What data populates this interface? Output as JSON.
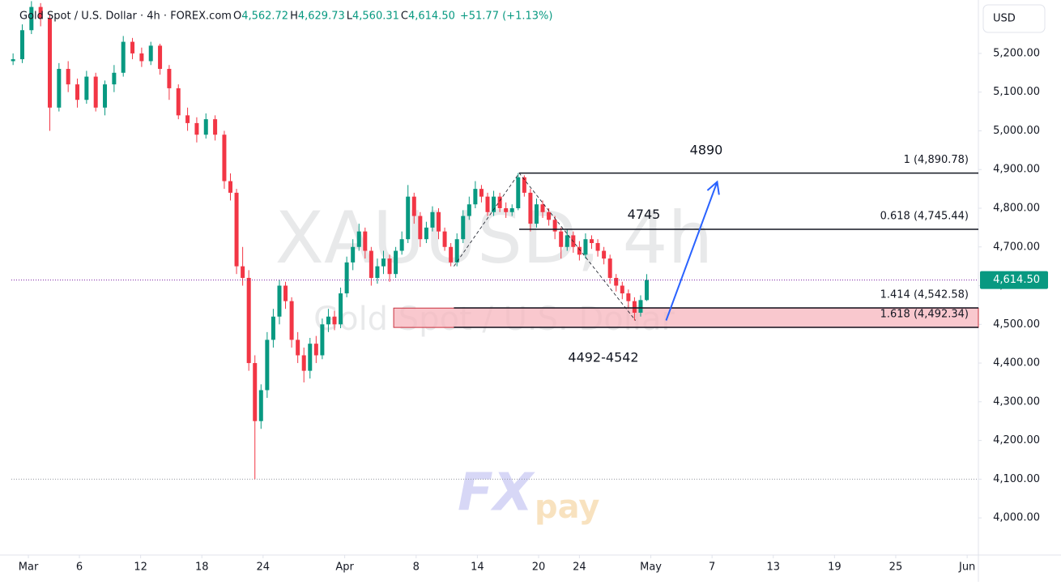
{
  "header": {
    "title": "Gold Spot / U.S. Dollar · 4h · FOREX.com",
    "ohlc": [
      {
        "key": "O",
        "text": "4,562.72"
      },
      {
        "key": "H",
        "text": "4,629.73"
      },
      {
        "key": "L",
        "text": "4,560.31"
      },
      {
        "key": "C",
        "text": "4,614.50"
      }
    ],
    "change": "+51.77 (+1.13%)"
  },
  "currency_button": "USD",
  "watermark": {
    "symbol": "XAUUSD, 4h",
    "description": "Gold Spot / U.S. Dollar"
  },
  "logo": {
    "left": "FX",
    "right": "pay"
  },
  "chart_data": {
    "type": "candlestick",
    "up_color": "#089981",
    "down_color": "#f23645",
    "xlim": [
      -1.67,
      93.1
    ],
    "ylim": [
      3904,
      5338
    ],
    "xticks": [
      {
        "value": 0,
        "label": "Mar"
      },
      {
        "value": 5,
        "label": "6"
      },
      {
        "value": 11,
        "label": "12"
      },
      {
        "value": 17,
        "label": "18"
      },
      {
        "value": 23,
        "label": "24"
      },
      {
        "value": 31,
        "label": "Apr"
      },
      {
        "value": 38,
        "label": "8"
      },
      {
        "value": 44,
        "label": "14"
      },
      {
        "value": 50,
        "label": "20"
      },
      {
        "value": 54,
        "label": "24"
      },
      {
        "value": 61,
        "label": "May"
      },
      {
        "value": 67,
        "label": "7"
      },
      {
        "value": 73,
        "label": "13"
      },
      {
        "value": 79,
        "label": "19"
      },
      {
        "value": 85,
        "label": "25"
      },
      {
        "value": 92,
        "label": "Jun"
      }
    ],
    "yticks": [
      {
        "value": 4000,
        "label": "4,000.00"
      },
      {
        "value": 4100,
        "label": "4,100.00"
      },
      {
        "value": 4200,
        "label": "4,200.00"
      },
      {
        "value": 4300,
        "label": "4,300.00"
      },
      {
        "value": 4400,
        "label": "4,400.00"
      },
      {
        "value": 4500,
        "label": "4,500.00"
      },
      {
        "value": 4600,
        "label": "4,600.00"
      },
      {
        "value": 4700,
        "label": "4,700.00"
      },
      {
        "value": 4800,
        "label": "4,800.00"
      },
      {
        "value": 4900,
        "label": "4,900.00"
      },
      {
        "value": 5000,
        "label": "5,000.00"
      },
      {
        "value": 5100,
        "label": "5,100.00"
      },
      {
        "value": 5200,
        "label": "5,200.00"
      }
    ],
    "x": [
      -1.5,
      -0.6,
      0.3,
      1.2,
      2.1,
      3.0,
      3.9,
      4.8,
      5.7,
      6.6,
      7.5,
      8.4,
      9.3,
      10.2,
      11.1,
      12.0,
      12.9,
      13.8,
      14.7,
      15.6,
      16.5,
      17.4,
      18.3,
      19.2,
      19.8,
      20.4,
      21.0,
      21.6,
      22.2,
      22.8,
      23.4,
      24.0,
      24.6,
      25.2,
      25.8,
      26.4,
      27.0,
      27.6,
      28.2,
      28.8,
      29.4,
      30.0,
      30.6,
      31.2,
      31.8,
      32.4,
      33.0,
      33.6,
      34.2,
      34.8,
      35.4,
      36.0,
      36.6,
      37.2,
      37.8,
      38.4,
      39.0,
      39.6,
      40.2,
      40.8,
      41.4,
      42.0,
      42.6,
      43.2,
      43.8,
      44.4,
      45.0,
      45.6,
      46.2,
      46.8,
      47.4,
      48.0,
      48.6,
      49.2,
      49.8,
      50.4,
      51.0,
      51.6,
      52.2,
      52.8,
      53.4,
      54.0,
      54.6,
      55.2,
      55.8,
      56.4,
      57.0,
      57.6,
      58.2,
      58.8,
      59.4,
      60.0,
      60.6
    ],
    "open": [
      5180,
      5185,
      5260,
      5320,
      5290,
      5060,
      5160,
      5120,
      5080,
      5140,
      5060,
      5120,
      5150,
      5230,
      5200,
      5180,
      5220,
      5160,
      5110,
      5040,
      5020,
      4990,
      5030,
      4990,
      4870,
      4840,
      4650,
      4620,
      4400,
      4250,
      4330,
      4460,
      4520,
      4600,
      4560,
      4460,
      4420,
      4380,
      4450,
      4420,
      4500,
      4520,
      4500,
      4580,
      4660,
      4700,
      4740,
      4690,
      4620,
      4650,
      4670,
      4630,
      4690,
      4720,
      4830,
      4780,
      4720,
      4750,
      4790,
      4740,
      4700,
      4660,
      4720,
      4780,
      4810,
      4850,
      4830,
      4790,
      4830,
      4800,
      4790,
      4800,
      4880,
      4840,
      4760,
      4810,
      4790,
      4770,
      4740,
      4700,
      4730,
      4700,
      4680,
      4720,
      4710,
      4690,
      4670,
      4620,
      4600,
      4580,
      4560,
      4530,
      4562.72
    ],
    "high": [
      5200,
      5275,
      5335,
      5330,
      5300,
      5175,
      5180,
      5135,
      5155,
      5150,
      5130,
      5170,
      5245,
      5240,
      5215,
      5230,
      5225,
      5170,
      5120,
      5060,
      5035,
      5045,
      5040,
      5000,
      4890,
      4850,
      4700,
      4640,
      4420,
      4345,
      4480,
      4540,
      4615,
      4610,
      4570,
      4480,
      4440,
      4465,
      4470,
      4515,
      4540,
      4535,
      4595,
      4675,
      4720,
      4760,
      4750,
      4700,
      4670,
      4690,
      4680,
      4700,
      4740,
      4860,
      4840,
      4790,
      4765,
      4805,
      4800,
      4750,
      4710,
      4735,
      4795,
      4830,
      4870,
      4860,
      4840,
      4845,
      4840,
      4815,
      4810,
      4890.78,
      4885,
      4850,
      4825,
      4820,
      4800,
      4780,
      4750,
      4745,
      4740,
      4715,
      4735,
      4730,
      4720,
      4700,
      4680,
      4630,
      4610,
      4590,
      4570,
      4575,
      4629.73
    ],
    "low": [
      5170,
      5175,
      5250,
      5270,
      5000,
      5050,
      5100,
      5060,
      5070,
      5050,
      5040,
      5100,
      5140,
      5185,
      5165,
      5170,
      5145,
      5080,
      5030,
      5000,
      4970,
      4980,
      4975,
      4850,
      4820,
      4630,
      4600,
      4380,
      4100,
      4230,
      4310,
      4440,
      4500,
      4540,
      4440,
      4400,
      4350,
      4360,
      4400,
      4410,
      4480,
      4485,
      4490,
      4570,
      4640,
      4690,
      4670,
      4600,
      4605,
      4630,
      4610,
      4620,
      4680,
      4710,
      4760,
      4700,
      4710,
      4740,
      4720,
      4690,
      4650,
      4650,
      4710,
      4770,
      4800,
      4815,
      4780,
      4780,
      4790,
      4775,
      4780,
      4795,
      4830,
      4740,
      4750,
      4775,
      4755,
      4720,
      4670,
      4690,
      4685,
      4665,
      4670,
      4695,
      4675,
      4655,
      4605,
      4585,
      4565,
      4540,
      4510,
      4520,
      4560.31
    ],
    "close": [
      5185,
      5260,
      5320,
      5290,
      5060,
      5160,
      5120,
      5080,
      5140,
      5060,
      5120,
      5150,
      5230,
      5200,
      5180,
      5220,
      5160,
      5110,
      5040,
      5020,
      4990,
      5030,
      4990,
      4870,
      4840,
      4650,
      4620,
      4400,
      4250,
      4330,
      4460,
      4520,
      4600,
      4560,
      4460,
      4420,
      4380,
      4450,
      4420,
      4500,
      4520,
      4500,
      4580,
      4660,
      4700,
      4740,
      4690,
      4620,
      4650,
      4670,
      4630,
      4690,
      4720,
      4830,
      4780,
      4720,
      4750,
      4790,
      4740,
      4700,
      4660,
      4720,
      4780,
      4810,
      4850,
      4830,
      4790,
      4830,
      4800,
      4790,
      4800,
      4880,
      4840,
      4760,
      4810,
      4790,
      4770,
      4740,
      4700,
      4730,
      4700,
      4680,
      4720,
      4710,
      4690,
      4670,
      4620,
      4600,
      4580,
      4560,
      4530,
      4562.72,
      4614.5
    ],
    "last_price": {
      "value": 4614.5,
      "label": "4,614.50"
    },
    "low_line": 4100,
    "swing_path": {
      "x": [
        41.7,
        48.1,
        59.5
      ],
      "y": [
        4650,
        4890.78,
        4510
      ]
    },
    "fib_levels": [
      {
        "value": 4890.78,
        "label": "1 (4,890.78)",
        "start": 48.1
      },
      {
        "value": 4745.44,
        "label": "0.618 (4,745.44)",
        "start": 48.1
      },
      {
        "value": 4542.58,
        "label": "1.414 (4,542.58)",
        "start": 41.7
      },
      {
        "value": 4492.34,
        "label": "1.618 (4,492.34)",
        "start": 41.7
      }
    ],
    "zone": {
      "low": 4492,
      "high": 4542,
      "start": 35.8,
      "label": "4492-4542",
      "color": "#f7b6bd"
    },
    "arrow": {
      "x": [
        62.5,
        67.5
      ],
      "y": [
        4510,
        4868
      ],
      "color": "#2962ff"
    },
    "targets": [
      {
        "value": 4890,
        "label": "4890"
      },
      {
        "value": 4745,
        "label": "4745"
      }
    ]
  }
}
